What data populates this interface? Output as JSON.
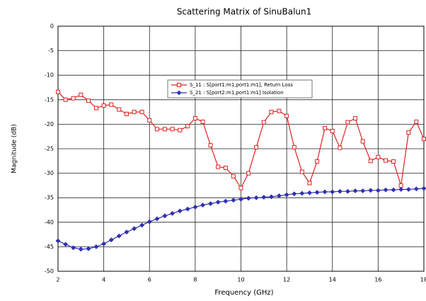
{
  "chart_data": {
    "type": "line",
    "title": "Scattering Matrix of SinuBalun1",
    "xlabel": "Frequency (GHz)",
    "ylabel": "Magnitude (dB)",
    "x": [
      2,
      2.33,
      2.67,
      3,
      3.33,
      3.67,
      4,
      4.33,
      4.67,
      5,
      5.33,
      5.67,
      6,
      6.33,
      6.67,
      7,
      7.33,
      7.67,
      8,
      8.33,
      8.67,
      9,
      9.33,
      9.67,
      10,
      10.33,
      10.67,
      11,
      11.33,
      11.67,
      12,
      12.33,
      12.67,
      13,
      13.33,
      13.67,
      14,
      14.33,
      14.67,
      15,
      15.33,
      15.67,
      16,
      16.33,
      16.67,
      17,
      17.33,
      17.67,
      18
    ],
    "series": [
      {
        "name": "S_11 : S[port1:m1,port1:m1], Return Loss",
        "color": "#e02020",
        "marker": "square",
        "values": [
          -13.4,
          -15,
          -14.7,
          -14,
          -15.2,
          -16.7,
          -16.2,
          -16,
          -17,
          -17.9,
          -17.5,
          -17.5,
          -19.2,
          -21,
          -21,
          -21,
          -21.2,
          -20.4,
          -18.8,
          -19.5,
          -24.3,
          -28.7,
          -28.9,
          -30.6,
          -33,
          -30,
          -24.7,
          -19.6,
          -17.5,
          -17.3,
          -18.3,
          -24.7,
          -29.7,
          -32,
          -27.6,
          -20.8,
          -21.4,
          -24.8,
          -19.6,
          -18.8,
          -23.5,
          -27.5,
          -26.7,
          -27.4,
          -27.6,
          -32.5,
          -21.7,
          -19.5,
          -23
        ]
      },
      {
        "name": "S_21 : S[port2:m1,port1:m1] Isolation",
        "color": "#3030b0",
        "marker": "diamond",
        "values": [
          -43.8,
          -44.5,
          -45.2,
          -45.5,
          -45.4,
          -45.0,
          -44.4,
          -43.6,
          -42.8,
          -42.0,
          -41.3,
          -40.6,
          -39.9,
          -39.3,
          -38.7,
          -38.2,
          -37.7,
          -37.3,
          -36.9,
          -36.5,
          -36.2,
          -35.9,
          -35.7,
          -35.5,
          -35.3,
          -35.1,
          -35.0,
          -34.9,
          -34.8,
          -34.6,
          -34.4,
          -34.2,
          -34.1,
          -34.0,
          -33.9,
          -33.8,
          -33.8,
          -33.7,
          -33.7,
          -33.6,
          -33.6,
          -33.5,
          -33.5,
          -33.4,
          -33.4,
          -33.3,
          -33.3,
          -33.2,
          -33.1
        ]
      }
    ],
    "xlim": [
      2,
      18
    ],
    "xticks": [
      2,
      4,
      6,
      8,
      10,
      12,
      14,
      16,
      18
    ],
    "ylim": [
      -50,
      0
    ],
    "yticks": [
      0,
      -5,
      -10,
      -15,
      -20,
      -25,
      -30,
      -35,
      -40,
      -45,
      -50
    ],
    "grid": true
  }
}
